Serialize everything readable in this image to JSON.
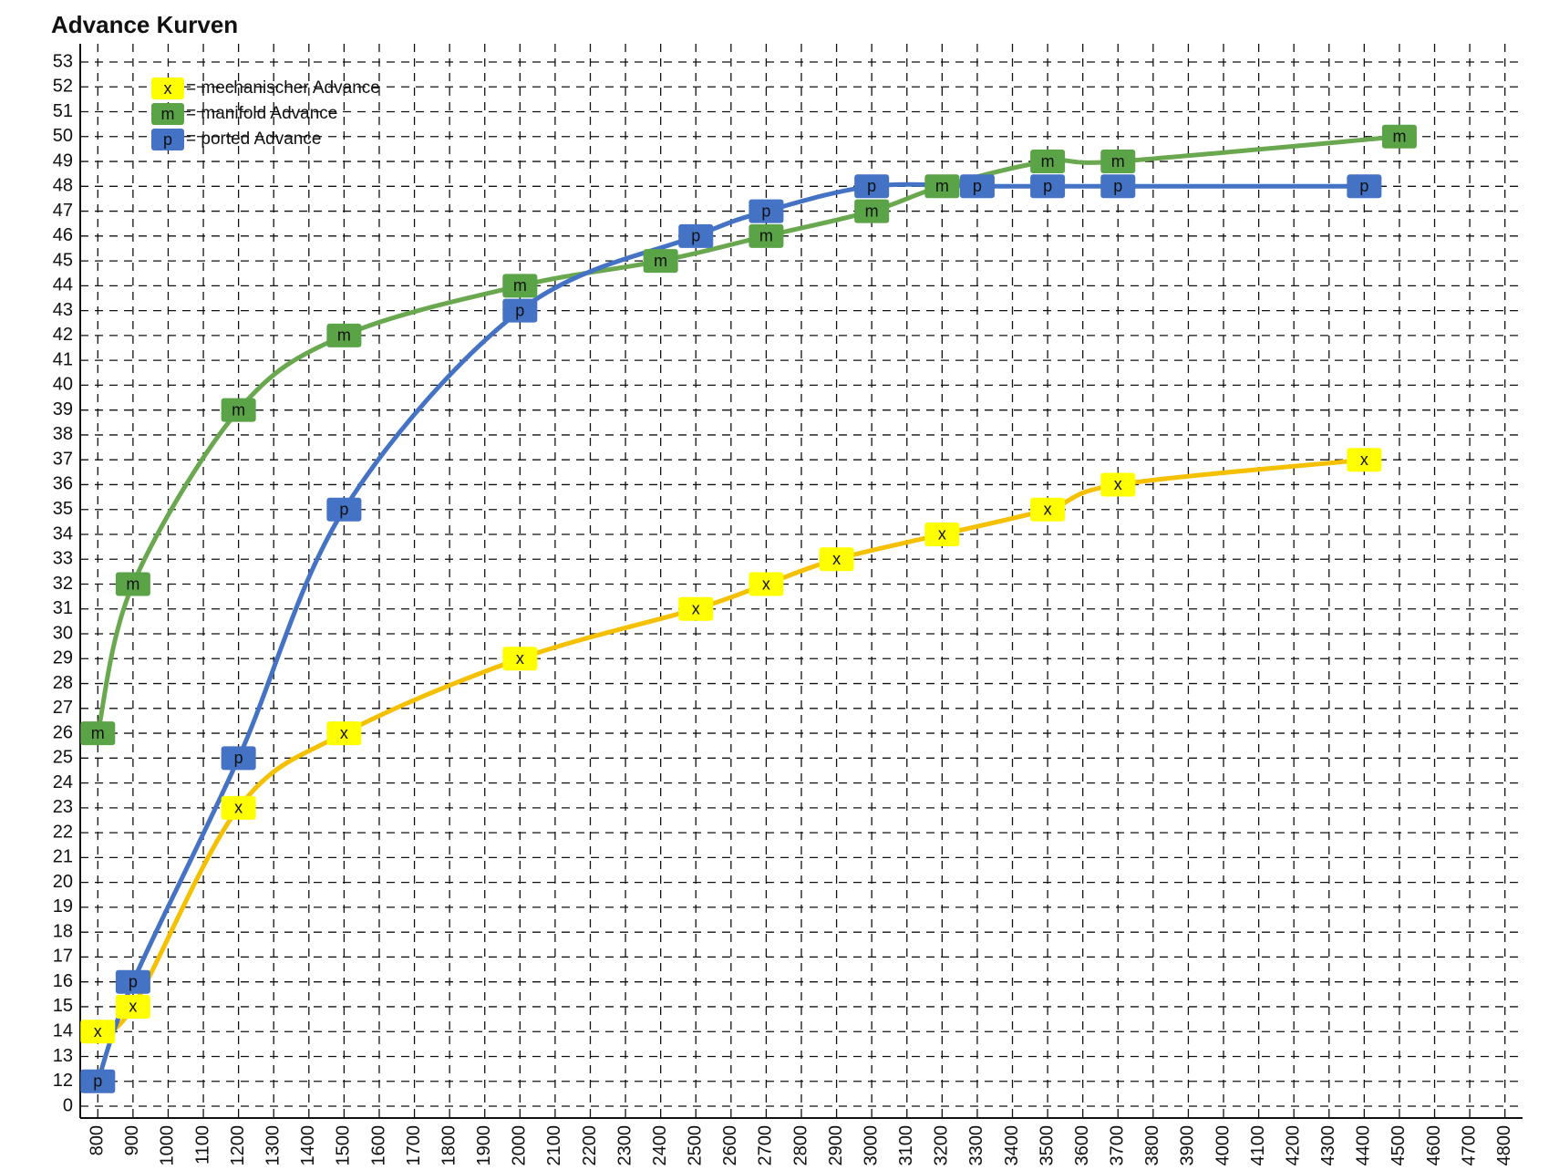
{
  "chart_data": {
    "type": "line",
    "title": "Advance Kurven",
    "xlim": [
      750,
      4850
    ],
    "xticks": [
      800,
      900,
      1000,
      1100,
      1200,
      1300,
      1400,
      1500,
      1600,
      1700,
      1800,
      1900,
      2000,
      2100,
      2200,
      2300,
      2400,
      2500,
      2600,
      2700,
      2800,
      2900,
      3000,
      3100,
      3200,
      3300,
      3400,
      3500,
      3600,
      3700,
      3800,
      3900,
      4000,
      4100,
      4200,
      4300,
      4400,
      4500,
      4600,
      4700,
      4800
    ],
    "ylim": [
      0,
      53
    ],
    "yticks": [
      0,
      12,
      13,
      14,
      15,
      16,
      17,
      18,
      19,
      20,
      21,
      22,
      23,
      24,
      25,
      26,
      27,
      28,
      29,
      30,
      31,
      32,
      33,
      34,
      35,
      36,
      37,
      38,
      39,
      40,
      41,
      42,
      43,
      44,
      45,
      46,
      47,
      48,
      49,
      50,
      51,
      52,
      53
    ],
    "grid": true,
    "legend": "top-left",
    "series": [
      {
        "name": "= mechanischer Advance",
        "marker_label": "x",
        "color": "#f5c000",
        "marker_color": "#ffff00",
        "x": [
          800,
          900,
          1200,
          1500,
          2000,
          2500,
          2700,
          2900,
          3200,
          3500,
          3700,
          4400
        ],
        "values": [
          14,
          15,
          23,
          26,
          29,
          31,
          32,
          33,
          34,
          35,
          36,
          37
        ]
      },
      {
        "name": "= manifold Advance",
        "marker_label": "m",
        "color": "#6aa84f",
        "marker_color": "#5aa346",
        "x": [
          800,
          900,
          1200,
          1500,
          2000,
          2400,
          2700,
          3000,
          3200,
          3500,
          3700,
          4500
        ],
        "values": [
          26,
          32,
          39,
          42,
          44,
          45,
          46,
          47,
          48,
          49,
          49,
          50
        ]
      },
      {
        "name": "= ported Advance",
        "marker_label": "p",
        "color": "#4472c4",
        "marker_color": "#4472c4",
        "x": [
          800,
          900,
          1200,
          1500,
          2000,
          2500,
          2700,
          3000,
          3300,
          3500,
          3700,
          4400
        ],
        "values": [
          12,
          16,
          25,
          35,
          43,
          46,
          47,
          48,
          48,
          48,
          48,
          48
        ]
      }
    ]
  }
}
